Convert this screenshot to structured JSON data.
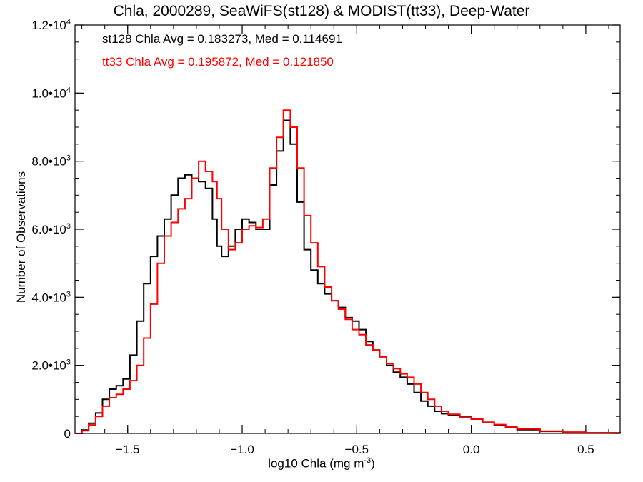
{
  "chart_data": {
    "type": "line",
    "title": "Chla, 2000289, SeaWiFS(st128) & MODIST(tt33), Deep-Water",
    "xlabel_main": "log10 Chla (mg m",
    "xlabel_sup": "-3",
    "xlabel_close": ")",
    "ylabel": "Number of Observations",
    "xlim": [
      -1.73,
      0.65
    ],
    "ylim": [
      0,
      12000
    ],
    "x_ticks": [
      {
        "value": -1.5,
        "label": "-1.5"
      },
      {
        "value": -1.0,
        "label": "-1.0"
      },
      {
        "value": -0.5,
        "label": "-0.5"
      },
      {
        "value": 0.0,
        "label": "0.0"
      },
      {
        "value": 0.5,
        "label": "0.5"
      }
    ],
    "y_ticks": [
      {
        "value": 0,
        "mant": "0",
        "exp": ""
      },
      {
        "value": 2000,
        "mant": "2.0•10",
        "exp": "3"
      },
      {
        "value": 4000,
        "mant": "4.0•10",
        "exp": "3"
      },
      {
        "value": 6000,
        "mant": "6.0•10",
        "exp": "3"
      },
      {
        "value": 8000,
        "mant": "8.0•10",
        "exp": "3"
      },
      {
        "value": 10000,
        "mant": "1.0•10",
        "exp": "4"
      },
      {
        "value": 12000,
        "mant": "1.2•10",
        "exp": "4"
      }
    ],
    "annotations": [
      {
        "text": "st128 Chla Avg = 0.183273, Med = 0.114691",
        "color": "#000000"
      },
      {
        "text": "tt33 Chla Avg = 0.195872, Med = 0.121850",
        "color": "#ff0000"
      }
    ],
    "series": [
      {
        "color": "#000000",
        "points": [
          [
            -1.73,
            0
          ],
          [
            -1.7,
            100
          ],
          [
            -1.67,
            300
          ],
          [
            -1.64,
            600
          ],
          [
            -1.61,
            1000
          ],
          [
            -1.58,
            1300
          ],
          [
            -1.55,
            1400
          ],
          [
            -1.52,
            1600
          ],
          [
            -1.49,
            2300
          ],
          [
            -1.46,
            3300
          ],
          [
            -1.43,
            4400
          ],
          [
            -1.4,
            5200
          ],
          [
            -1.37,
            5800
          ],
          [
            -1.34,
            6300
          ],
          [
            -1.31,
            7000
          ],
          [
            -1.28,
            7500
          ],
          [
            -1.25,
            7600
          ],
          [
            -1.22,
            7500
          ],
          [
            -1.19,
            7400
          ],
          [
            -1.16,
            7200
          ],
          [
            -1.13,
            6300
          ],
          [
            -1.11,
            5500
          ],
          [
            -1.09,
            5200
          ],
          [
            -1.06,
            5500
          ],
          [
            -1.03,
            6000
          ],
          [
            -1.0,
            6300
          ],
          [
            -0.97,
            6200
          ],
          [
            -0.94,
            6000
          ],
          [
            -0.91,
            6000
          ],
          [
            -0.88,
            7300
          ],
          [
            -0.85,
            8300
          ],
          [
            -0.82,
            9200
          ],
          [
            -0.79,
            8500
          ],
          [
            -0.76,
            6800
          ],
          [
            -0.73,
            5400
          ],
          [
            -0.7,
            4800
          ],
          [
            -0.67,
            4400
          ],
          [
            -0.64,
            4100
          ],
          [
            -0.61,
            3900
          ],
          [
            -0.58,
            3700
          ],
          [
            -0.55,
            3400
          ],
          [
            -0.52,
            3300
          ],
          [
            -0.49,
            3050
          ],
          [
            -0.46,
            2700
          ],
          [
            -0.43,
            2450
          ],
          [
            -0.4,
            2250
          ],
          [
            -0.37,
            2000
          ],
          [
            -0.34,
            1800
          ],
          [
            -0.31,
            1650
          ],
          [
            -0.28,
            1450
          ],
          [
            -0.25,
            1200
          ],
          [
            -0.22,
            950
          ],
          [
            -0.19,
            800
          ],
          [
            -0.16,
            650
          ],
          [
            -0.13,
            580
          ],
          [
            -0.1,
            530
          ],
          [
            -0.05,
            480
          ],
          [
            0.0,
            420
          ],
          [
            0.05,
            320
          ],
          [
            0.1,
            240
          ],
          [
            0.15,
            170
          ],
          [
            0.2,
            110
          ],
          [
            0.3,
            60
          ],
          [
            0.4,
            30
          ],
          [
            0.5,
            15
          ],
          [
            0.65,
            0
          ]
        ]
      },
      {
        "color": "#ff0000",
        "points": [
          [
            -1.73,
            0
          ],
          [
            -1.7,
            80
          ],
          [
            -1.67,
            250
          ],
          [
            -1.64,
            500
          ],
          [
            -1.61,
            800
          ],
          [
            -1.58,
            1050
          ],
          [
            -1.55,
            1150
          ],
          [
            -1.52,
            1300
          ],
          [
            -1.49,
            1550
          ],
          [
            -1.46,
            2000
          ],
          [
            -1.43,
            2800
          ],
          [
            -1.4,
            3800
          ],
          [
            -1.37,
            5000
          ],
          [
            -1.34,
            5800
          ],
          [
            -1.31,
            6200
          ],
          [
            -1.28,
            6600
          ],
          [
            -1.25,
            6900
          ],
          [
            -1.22,
            7500
          ],
          [
            -1.19,
            8000
          ],
          [
            -1.16,
            7700
          ],
          [
            -1.13,
            7400
          ],
          [
            -1.11,
            6900
          ],
          [
            -1.09,
            6000
          ],
          [
            -1.06,
            5400
          ],
          [
            -1.03,
            5600
          ],
          [
            -1.0,
            6000
          ],
          [
            -0.97,
            6100
          ],
          [
            -0.94,
            6050
          ],
          [
            -0.91,
            6300
          ],
          [
            -0.88,
            7800
          ],
          [
            -0.85,
            8700
          ],
          [
            -0.82,
            9500
          ],
          [
            -0.79,
            9000
          ],
          [
            -0.76,
            7800
          ],
          [
            -0.73,
            6400
          ],
          [
            -0.7,
            5600
          ],
          [
            -0.67,
            4900
          ],
          [
            -0.64,
            4300
          ],
          [
            -0.61,
            3900
          ],
          [
            -0.58,
            3650
          ],
          [
            -0.55,
            3350
          ],
          [
            -0.52,
            3050
          ],
          [
            -0.49,
            2900
          ],
          [
            -0.46,
            2600
          ],
          [
            -0.43,
            2450
          ],
          [
            -0.4,
            2250
          ],
          [
            -0.37,
            2050
          ],
          [
            -0.34,
            1900
          ],
          [
            -0.31,
            1750
          ],
          [
            -0.28,
            1650
          ],
          [
            -0.25,
            1450
          ],
          [
            -0.22,
            1200
          ],
          [
            -0.19,
            1000
          ],
          [
            -0.16,
            800
          ],
          [
            -0.13,
            650
          ],
          [
            -0.1,
            560
          ],
          [
            -0.05,
            470
          ],
          [
            0.0,
            420
          ],
          [
            0.05,
            330
          ],
          [
            0.1,
            260
          ],
          [
            0.15,
            190
          ],
          [
            0.2,
            130
          ],
          [
            0.3,
            70
          ],
          [
            0.4,
            40
          ],
          [
            0.5,
            20
          ],
          [
            0.65,
            0
          ]
        ]
      }
    ]
  }
}
